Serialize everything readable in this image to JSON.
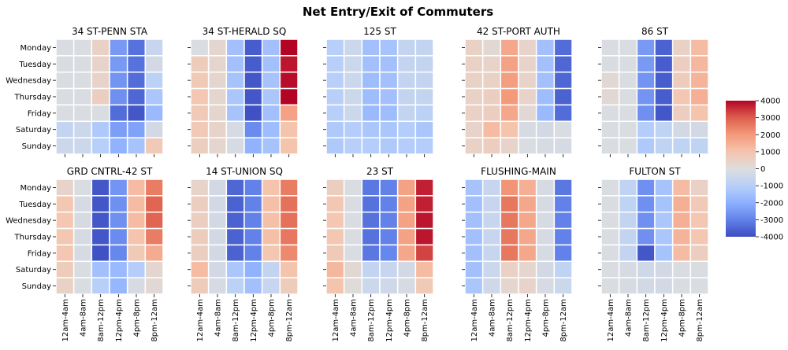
{
  "chart_data": {
    "type": "heatmap",
    "title": "Net Entry/Exit of Commuters",
    "rows": [
      "Monday",
      "Tuesday",
      "Wednesday",
      "Thursday",
      "Friday",
      "Saturday",
      "Sunday"
    ],
    "cols": [
      "12am-4am",
      "4am-8am",
      "8am-12pm",
      "12pm-4pm",
      "4pm-8pm",
      "8pm-12am"
    ],
    "colormap": "coolwarm",
    "vmin": -4000,
    "vmax": 4000,
    "colorbar_ticks": [
      4000,
      3000,
      2000,
      1000,
      0,
      -1000,
      -2000,
      -3000,
      -4000
    ],
    "panels": [
      {
        "name": "34 ST-PENN STA",
        "values": [
          [
            -100,
            -100,
            500,
            -2500,
            -3300,
            -600
          ],
          [
            -100,
            -100,
            400,
            -2500,
            -3300,
            -300
          ],
          [
            -100,
            -100,
            400,
            -2600,
            -3400,
            -900
          ],
          [
            -100,
            -100,
            600,
            -2700,
            -3500,
            -1300
          ],
          [
            -100,
            -100,
            -100,
            -3400,
            -3800,
            -1700
          ],
          [
            -700,
            -500,
            -1200,
            -2400,
            -2300,
            -300
          ],
          [
            -500,
            -500,
            -1000,
            -1900,
            -1400,
            800
          ]
        ]
      },
      {
        "name": "34 ST-HERALD SQ",
        "values": [
          [
            -100,
            300,
            -1500,
            -3700,
            -1500,
            4000
          ],
          [
            700,
            300,
            -1500,
            -3700,
            -1500,
            3800
          ],
          [
            800,
            300,
            -1400,
            -3800,
            -1400,
            3900
          ],
          [
            900,
            300,
            -1300,
            -3800,
            -1300,
            4000
          ],
          [
            800,
            300,
            -1400,
            -3900,
            -1500,
            1800
          ],
          [
            800,
            400,
            -200,
            -2800,
            -1600,
            1000
          ],
          [
            600,
            300,
            -200,
            -1900,
            -1400,
            1000
          ]
        ]
      },
      {
        "name": "125 ST",
        "values": [
          [
            -1000,
            -500,
            -1500,
            -1400,
            -700,
            -700
          ],
          [
            -1000,
            -500,
            -1500,
            -1500,
            -700,
            -700
          ],
          [
            -1000,
            -500,
            -1600,
            -1500,
            -700,
            -700
          ],
          [
            -1000,
            -500,
            -1600,
            -1500,
            -700,
            -700
          ],
          [
            -1000,
            -500,
            -1700,
            -1600,
            -700,
            -900
          ],
          [
            -1200,
            -1100,
            -1300,
            -1300,
            -1100,
            -1300
          ],
          [
            -1200,
            -1000,
            -1100,
            -1200,
            -1100,
            -1100
          ]
        ]
      },
      {
        "name": "42 ST-PORT AUTH",
        "values": [
          [
            500,
            200,
            1700,
            400,
            -1500,
            -3400
          ],
          [
            500,
            400,
            1800,
            400,
            -1500,
            -3500
          ],
          [
            500,
            500,
            1900,
            400,
            -1500,
            -3500
          ],
          [
            500,
            600,
            2000,
            400,
            -1600,
            -3600
          ],
          [
            500,
            600,
            1700,
            200,
            -1700,
            -3400
          ],
          [
            400,
            1200,
            1000,
            -200,
            -300,
            -100
          ],
          [
            500,
            600,
            400,
            -100,
            -200,
            -200
          ]
        ]
      },
      {
        "name": "86 ST",
        "values": [
          [
            -100,
            -100,
            -2500,
            -3600,
            500,
            1200
          ],
          [
            -100,
            -100,
            -2500,
            -3700,
            600,
            1300
          ],
          [
            200,
            -100,
            -2600,
            -3700,
            700,
            1400
          ],
          [
            200,
            -100,
            -2600,
            -3700,
            900,
            1500
          ],
          [
            -100,
            -100,
            -2700,
            -3800,
            600,
            1000
          ],
          [
            -100,
            -100,
            -1100,
            -800,
            -300,
            -300
          ],
          [
            -100,
            -100,
            -1200,
            -800,
            -800,
            -800
          ]
        ]
      },
      {
        "name": "GRD CNTRL-42 ST",
        "values": [
          [
            400,
            -100,
            -3800,
            -2600,
            1200,
            2500
          ],
          [
            900,
            -200,
            -3800,
            -2700,
            1200,
            2900
          ],
          [
            900,
            -200,
            -3800,
            -2700,
            1200,
            2900
          ],
          [
            900,
            -200,
            -3800,
            -2800,
            1000,
            2500
          ],
          [
            900,
            -200,
            -3900,
            -2900,
            800,
            1600
          ],
          [
            700,
            -100,
            -1500,
            -1700,
            -1100,
            300
          ],
          [
            500,
            -100,
            -1000,
            -1800,
            -200,
            200
          ]
        ]
      },
      {
        "name": "14 ST-UNION SQ",
        "values": [
          [
            400,
            -300,
            -3500,
            -3000,
            1000,
            2500
          ],
          [
            600,
            -300,
            -3600,
            -3000,
            1100,
            2700
          ],
          [
            600,
            -300,
            -3600,
            -3000,
            1100,
            2700
          ],
          [
            700,
            -300,
            -3600,
            -3000,
            1100,
            2600
          ],
          [
            600,
            -300,
            -3600,
            -3000,
            900,
            2300
          ],
          [
            1200,
            -300,
            -1300,
            -1900,
            -700,
            1000
          ],
          [
            700,
            -200,
            -900,
            -1500,
            -600,
            700
          ]
        ]
      },
      {
        "name": "23 ST",
        "values": [
          [
            600,
            -100,
            -3200,
            -3000,
            1800,
            3700
          ],
          [
            900,
            -100,
            -3300,
            -3000,
            1800,
            3700
          ],
          [
            900,
            -100,
            -3300,
            -3000,
            1800,
            3800
          ],
          [
            900,
            -100,
            -3300,
            -3000,
            1800,
            3800
          ],
          [
            800,
            -100,
            -3200,
            -2900,
            1700,
            3300
          ],
          [
            1300,
            200,
            -700,
            -600,
            -300,
            1200
          ],
          [
            1000,
            100,
            -500,
            -400,
            -200,
            800
          ]
        ]
      },
      {
        "name": "FLUSHING-MAIN",
        "values": [
          [
            -1400,
            -600,
            2100,
            1500,
            -200,
            -3200
          ],
          [
            -1500,
            -600,
            2600,
            1700,
            -200,
            -3000
          ],
          [
            -1500,
            -600,
            2600,
            1700,
            -200,
            -3000
          ],
          [
            -1500,
            -600,
            2600,
            1700,
            -200,
            -3000
          ],
          [
            -1500,
            -600,
            2600,
            1700,
            -200,
            -3000
          ],
          [
            -1500,
            -500,
            500,
            300,
            -300,
            -800
          ],
          [
            -1300,
            -400,
            300,
            400,
            -200,
            -500
          ]
        ]
      },
      {
        "name": "FULTON ST",
        "values": [
          [
            -100,
            -800,
            -2700,
            -1400,
            1200,
            500
          ],
          [
            -100,
            -800,
            -2700,
            -1400,
            1500,
            800
          ],
          [
            -100,
            -700,
            -2700,
            -1300,
            1500,
            900
          ],
          [
            -100,
            -700,
            -2700,
            -1300,
            1400,
            900
          ],
          [
            -100,
            -700,
            -3800,
            -1400,
            1200,
            600
          ],
          [
            -100,
            -200,
            -400,
            -300,
            -100,
            -100
          ],
          [
            -100,
            -200,
            -300,
            -300,
            -100,
            -100
          ]
        ]
      }
    ]
  }
}
